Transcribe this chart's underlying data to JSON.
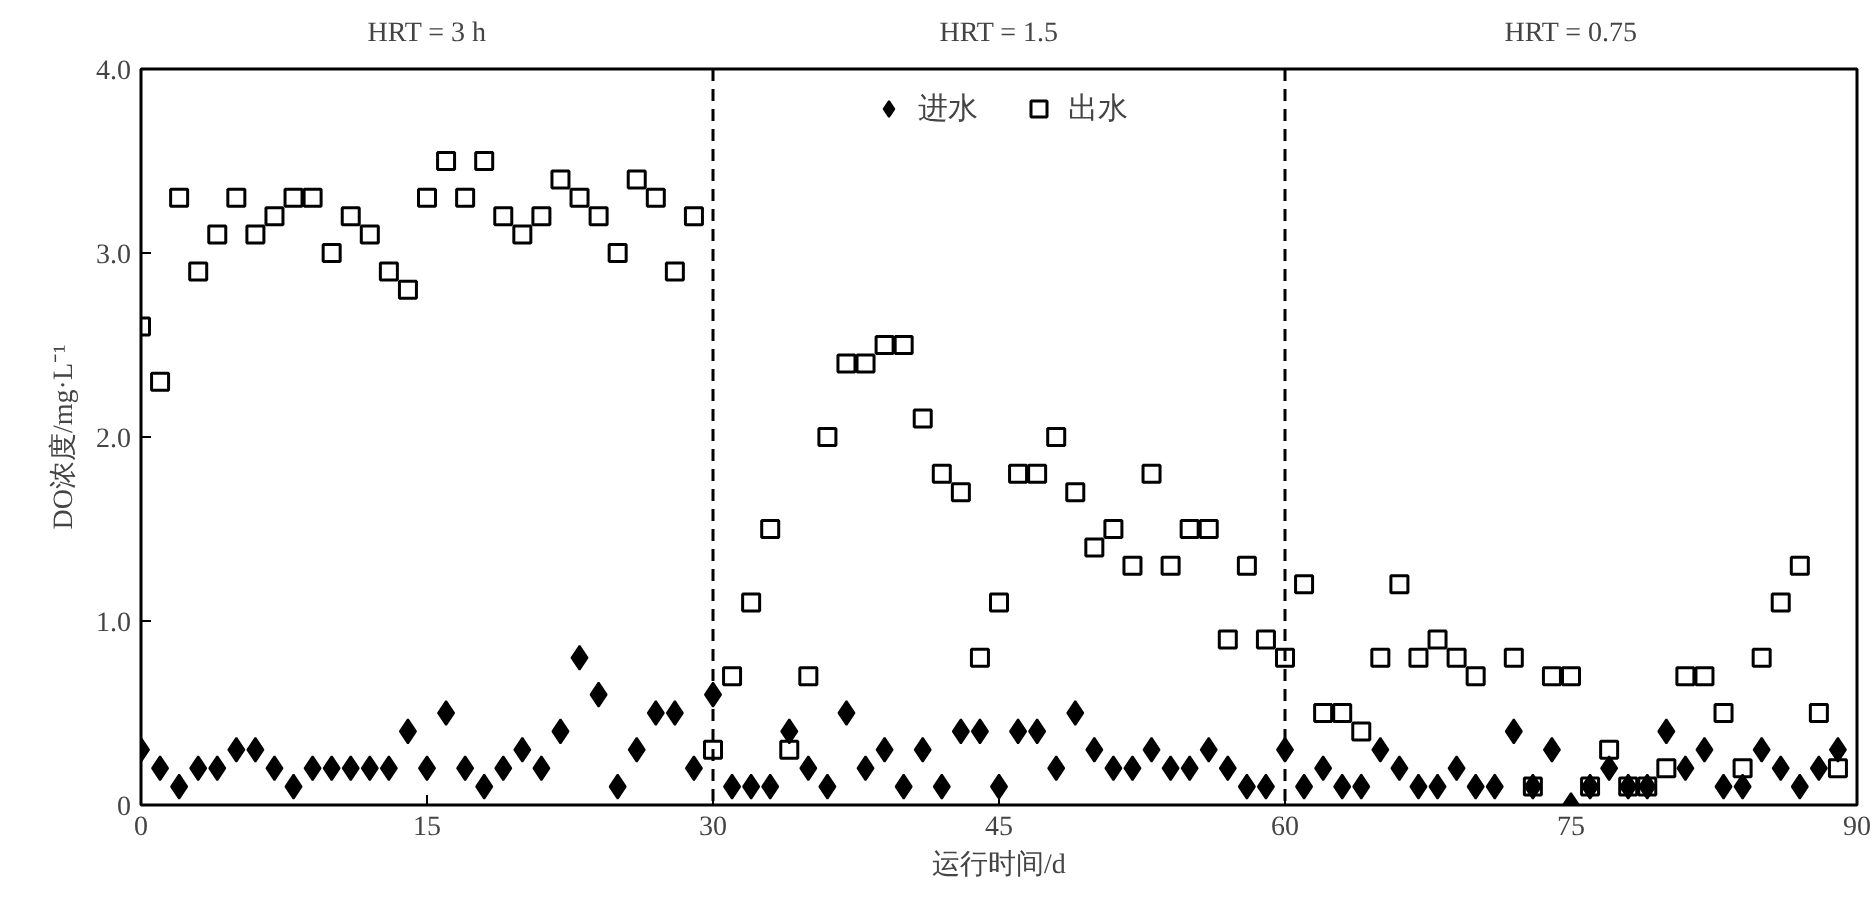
{
  "chart_data": {
    "type": "scatter",
    "xlabel": "运行时间/d",
    "ylabel": "DO浓度/mg·L⁻¹",
    "xlim": [
      0,
      90
    ],
    "ylim": [
      0,
      4
    ],
    "xticks": [
      0,
      15,
      30,
      45,
      60,
      75,
      90
    ],
    "yticks": [
      {
        "value": 0,
        "label": "0"
      },
      {
        "value": 1,
        "label": "1.0"
      },
      {
        "value": 2,
        "label": "2.0"
      },
      {
        "value": 3,
        "label": "3.0"
      },
      {
        "value": 4,
        "label": "4.0"
      }
    ],
    "grid": false,
    "legend": "top",
    "annotations": [
      "HRT = 3 h",
      "HRT = 1.5",
      "HRT = 0.75"
    ],
    "ref_lines": [
      {
        "axis": "x",
        "value": 30,
        "label": null,
        "line_style": "dashed",
        "color": "#000000"
      },
      {
        "axis": "x",
        "value": 60,
        "label": null,
        "line_style": "dashed",
        "color": "#000000"
      }
    ],
    "series": [
      {
        "name": "进水",
        "color": "#000000",
        "marker": "diamond",
        "x": [
          0,
          1,
          2,
          3,
          4,
          5,
          6,
          7,
          8,
          9,
          10,
          11,
          12,
          13,
          14,
          15,
          16,
          17,
          18,
          19,
          20,
          21,
          22,
          23,
          24,
          25,
          26,
          27,
          28,
          29,
          30,
          31,
          32,
          33,
          34,
          35,
          36,
          37,
          38,
          39,
          40,
          41,
          42,
          43,
          44,
          45,
          46,
          47,
          48,
          49,
          50,
          51,
          52,
          53,
          54,
          55,
          56,
          57,
          58,
          59,
          60,
          61,
          62,
          63,
          64,
          65,
          66,
          67,
          68,
          69,
          70,
          71,
          72,
          73,
          74,
          75,
          76,
          77,
          78,
          79,
          80,
          81,
          82,
          83,
          84,
          85,
          86,
          87,
          88,
          89
        ],
        "values": [
          0.3,
          0.2,
          0.1,
          0.2,
          0.2,
          0.3,
          0.3,
          0.2,
          0.1,
          0.2,
          0.2,
          0.2,
          0.2,
          0.2,
          0.4,
          0.2,
          0.5,
          0.2,
          0.1,
          0.2,
          0.3,
          0.2,
          0.4,
          0.8,
          0.6,
          0.1,
          0.3,
          0.5,
          0.5,
          0.2,
          0.6,
          0.1,
          0.1,
          0.1,
          0.4,
          0.2,
          0.1,
          0.5,
          0.2,
          0.3,
          0.1,
          0.3,
          0.1,
          0.4,
          0.4,
          0.1,
          0.4,
          0.4,
          0.2,
          0.5,
          0.3,
          0.2,
          0.2,
          0.3,
          0.2,
          0.2,
          0.3,
          0.2,
          0.1,
          0.1,
          0.3,
          0.1,
          0.2,
          0.1,
          0.1,
          0.3,
          0.2,
          0.1,
          0.1,
          0.2,
          0.1,
          0.1,
          0.4,
          0.1,
          0.3,
          0.0,
          0.1,
          0.2,
          0.1,
          0.1,
          0.4,
          0.2,
          0.3,
          0.1,
          0.1,
          0.3,
          0.2,
          0.1,
          0.2,
          0.3
        ]
      },
      {
        "name": "出水",
        "color": "#000000",
        "marker": "square",
        "x": [
          0,
          1,
          2,
          3,
          4,
          5,
          6,
          7,
          8,
          9,
          10,
          11,
          12,
          13,
          14,
          15,
          16,
          17,
          18,
          19,
          20,
          21,
          22,
          23,
          24,
          25,
          26,
          27,
          28,
          29,
          30,
          31,
          32,
          33,
          34,
          35,
          36,
          37,
          38,
          39,
          40,
          41,
          42,
          43,
          44,
          45,
          46,
          47,
          48,
          49,
          50,
          51,
          52,
          53,
          54,
          55,
          56,
          57,
          58,
          59,
          60,
          61,
          62,
          63,
          64,
          65,
          66,
          67,
          68,
          69,
          70,
          72,
          73,
          74,
          75,
          76,
          77,
          78,
          79,
          80,
          81,
          82,
          83,
          84,
          85,
          86,
          87,
          88,
          89
        ],
        "values": [
          2.6,
          2.3,
          3.3,
          2.9,
          3.1,
          3.3,
          3.1,
          3.2,
          3.3,
          3.3,
          3.0,
          3.2,
          3.1,
          2.9,
          2.8,
          3.3,
          3.5,
          3.3,
          3.5,
          3.2,
          3.1,
          3.2,
          3.4,
          3.3,
          3.2,
          3.0,
          3.4,
          3.3,
          2.9,
          3.2,
          0.3,
          0.7,
          1.1,
          1.5,
          0.3,
          0.7,
          2.0,
          2.4,
          2.4,
          2.5,
          2.5,
          2.1,
          1.8,
          1.7,
          0.8,
          1.1,
          1.8,
          1.8,
          2.0,
          1.7,
          1.4,
          1.5,
          1.3,
          1.8,
          1.3,
          1.5,
          1.5,
          0.9,
          1.3,
          0.9,
          0.8,
          1.2,
          0.5,
          0.5,
          0.4,
          0.8,
          1.2,
          0.8,
          0.9,
          0.8,
          0.7,
          0.8,
          0.1,
          0.7,
          0.7,
          0.1,
          0.3,
          0.1,
          0.1,
          0.2,
          0.7,
          0.7,
          0.5,
          0.2,
          0.8,
          1.1,
          1.3,
          0.5,
          0.2
        ]
      }
    ]
  }
}
